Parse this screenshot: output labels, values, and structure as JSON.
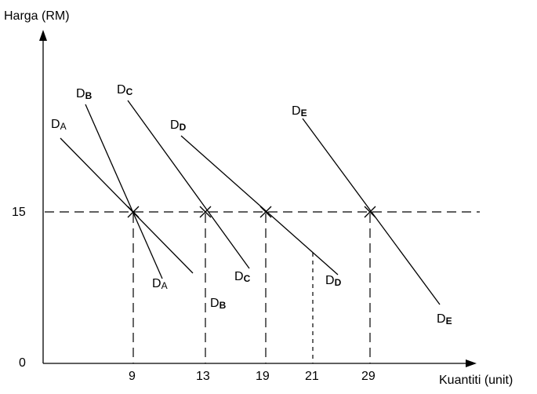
{
  "axes": {
    "y_title": "Harga (RM)",
    "x_title": "Kuantiti (unit)",
    "origin_label": "0",
    "y_tick_label": "15",
    "x_ticks": [
      "9",
      "13",
      "19",
      "21",
      "29"
    ]
  },
  "curves": [
    {
      "id": "A",
      "top_main": "D",
      "top_sub": "A",
      "bottom_main": "D",
      "bottom_sub": "A",
      "sub_bold": false
    },
    {
      "id": "B",
      "top_main": "D",
      "top_sub": "B",
      "bottom_main": "D",
      "bottom_sub": "B",
      "sub_bold": true
    },
    {
      "id": "C",
      "top_main": "D",
      "top_sub": "C",
      "bottom_main": "D",
      "bottom_sub": "C",
      "sub_bold": true
    },
    {
      "id": "D",
      "top_main": "D",
      "top_sub": "D",
      "bottom_main": "D",
      "bottom_sub": "D",
      "sub_bold": true
    },
    {
      "id": "E",
      "top_main": "D",
      "top_sub": "E",
      "bottom_main": "D",
      "bottom_sub": "E",
      "sub_bold": true
    }
  ],
  "price_level": 15,
  "intersection_quantities": [
    9,
    13,
    19,
    29
  ],
  "extra_quantity_marker": 21
}
